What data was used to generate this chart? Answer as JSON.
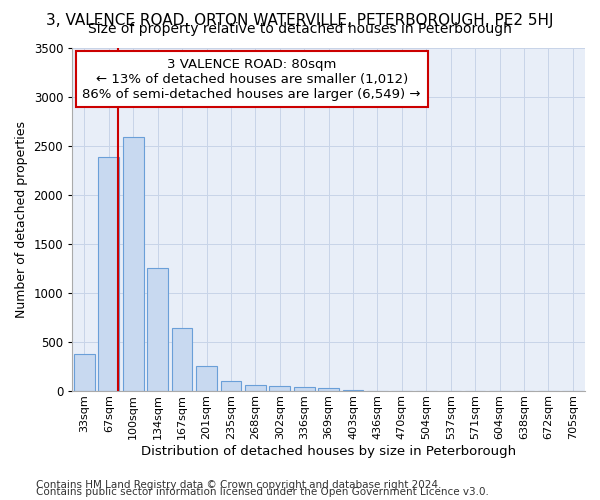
{
  "title": "3, VALENCE ROAD, ORTON WATERVILLE, PETERBOROUGH, PE2 5HJ",
  "subtitle": "Size of property relative to detached houses in Peterborough",
  "xlabel": "Distribution of detached houses by size in Peterborough",
  "ylabel": "Number of detached properties",
  "footnote1": "Contains HM Land Registry data © Crown copyright and database right 2024.",
  "footnote2": "Contains public sector information licensed under the Open Government Licence v3.0.",
  "bin_labels": [
    "33sqm",
    "67sqm",
    "100sqm",
    "134sqm",
    "167sqm",
    "201sqm",
    "235sqm",
    "268sqm",
    "302sqm",
    "336sqm",
    "369sqm",
    "403sqm",
    "436sqm",
    "470sqm",
    "504sqm",
    "537sqm",
    "571sqm",
    "604sqm",
    "638sqm",
    "672sqm",
    "705sqm"
  ],
  "bar_values": [
    380,
    2380,
    2590,
    1250,
    640,
    260,
    100,
    60,
    55,
    45,
    30,
    15,
    0,
    0,
    0,
    0,
    0,
    0,
    0,
    0,
    0
  ],
  "bar_color": "#c8d9f0",
  "bar_edge_color": "#6a9fd8",
  "grid_color": "#c8d4e8",
  "background_color": "#e8eef8",
  "red_line_x": 1.38,
  "annotation_text": "3 VALENCE ROAD: 80sqm\n← 13% of detached houses are smaller (1,012)\n86% of semi-detached houses are larger (6,549) →",
  "annotation_box_color": "#ffffff",
  "annotation_border_color": "#cc0000",
  "ylim": [
    0,
    3500
  ],
  "yticks": [
    0,
    500,
    1000,
    1500,
    2000,
    2500,
    3000,
    3500
  ],
  "title_fontsize": 11,
  "subtitle_fontsize": 10,
  "annotation_fontsize": 9.5,
  "ylabel_fontsize": 9,
  "xlabel_fontsize": 9.5,
  "tick_fontsize": 8,
  "footnote_fontsize": 7.5
}
